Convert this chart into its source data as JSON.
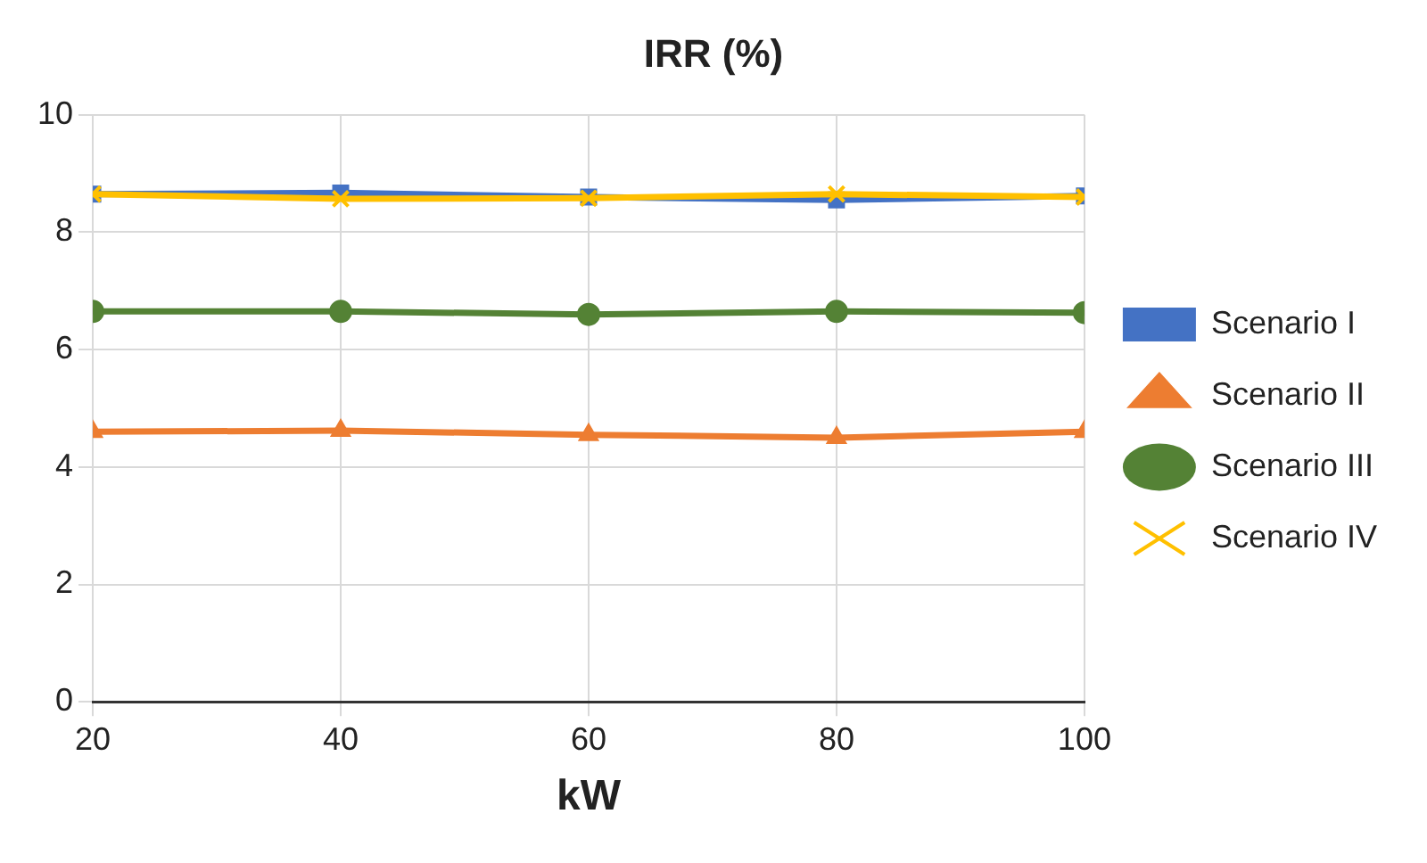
{
  "chart_data": {
    "type": "line",
    "title": "IRR (%)",
    "xlabel": "kW",
    "x": [
      20,
      40,
      60,
      80,
      100
    ],
    "xlim": [
      20,
      100
    ],
    "xticks": [
      20,
      40,
      60,
      80,
      100
    ],
    "ylim": [
      0,
      10
    ],
    "yticks": [
      0,
      2,
      4,
      6,
      8,
      10
    ],
    "grid": true,
    "legend": "right",
    "line_style": "solid",
    "series": [
      {
        "name": "Scenario I",
        "color": "#4472c4",
        "marker": "square",
        "values": [
          8.65,
          8.67,
          8.6,
          8.55,
          8.62
        ]
      },
      {
        "name": "Scenario II",
        "color": "#ed7d31",
        "marker": "triangle",
        "values": [
          4.6,
          4.62,
          4.55,
          4.5,
          4.6
        ]
      },
      {
        "name": "Scenario III",
        "color": "#548235",
        "marker": "circle",
        "values": [
          6.65,
          6.65,
          6.6,
          6.65,
          6.63
        ]
      },
      {
        "name": "Scenario IV",
        "color": "#ffc000",
        "marker": "cross",
        "values": [
          8.65,
          8.57,
          8.58,
          8.65,
          8.6
        ]
      }
    ]
  }
}
